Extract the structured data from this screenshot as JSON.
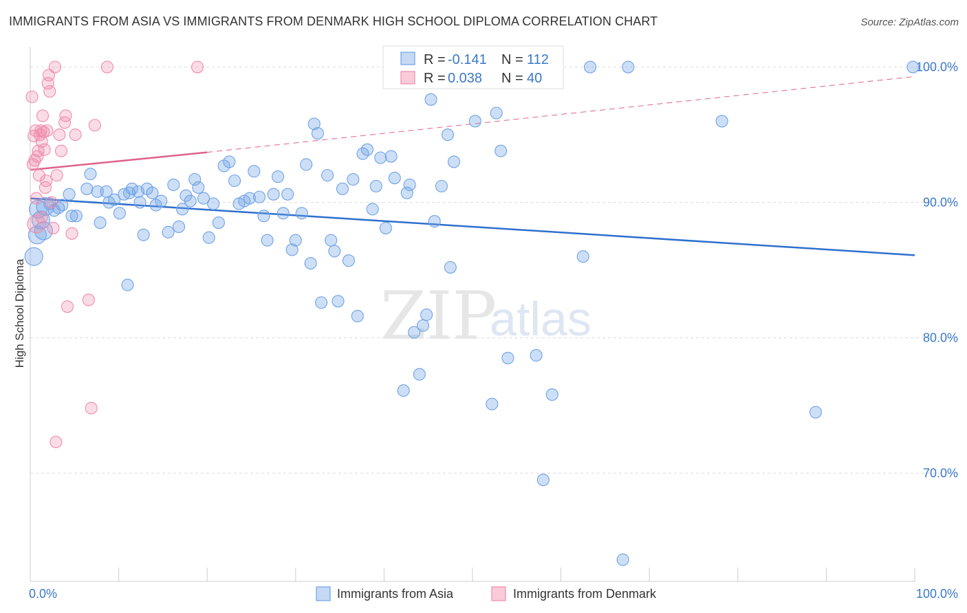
{
  "title": "IMMIGRANTS FROM ASIA VS IMMIGRANTS FROM DENMARK HIGH SCHOOL DIPLOMA CORRELATION CHART",
  "source": "Source: ZipAtlas.com",
  "watermark": {
    "zip": "ZIP",
    "atlas": "atlas"
  },
  "colors": {
    "asia": "#6fa2e6",
    "asia_line": "#2e6fce",
    "denmark": "#f08bac",
    "denmark_line": "#e0608a",
    "axis_text": "#3a78c9",
    "grid": "#dddddd"
  },
  "legend": {
    "asia": {
      "r_label": "R =",
      "r_value": "-0.141",
      "n_label": "N =",
      "n_value": "112"
    },
    "denmark": {
      "r_label": "R =",
      "r_value": "0.038",
      "n_label": "N =",
      "n_value": "40"
    }
  },
  "chart_data": {
    "type": "scatter",
    "title": "IMMIGRANTS FROM ASIA VS IMMIGRANTS FROM DENMARK HIGH SCHOOL DIPLOMA CORRELATION CHART",
    "xlabel": "",
    "ylabel": "High School Diploma",
    "xlim": [
      0,
      100
    ],
    "ylim": [
      62,
      101.5
    ],
    "x_tick_labels": [
      "0.0%",
      "100.0%"
    ],
    "y_ticks": [
      70,
      80,
      90,
      100
    ],
    "y_tick_labels": [
      "70.0%",
      "80.0%",
      "90.0%",
      "100.0%"
    ],
    "grid": true,
    "legend_position": "top-center",
    "series": [
      {
        "name": "Immigrants from Asia",
        "color": "#6fa2e6",
        "trend": {
          "x": [
            0,
            100
          ],
          "y": [
            90.3,
            86.1
          ],
          "style": "solid"
        },
        "points": [
          [
            0.4,
            86.0,
            1
          ],
          [
            0.8,
            87.6,
            1
          ],
          [
            1.2,
            88.7,
            1
          ],
          [
            1.7,
            89.7,
            1
          ],
          [
            2.2,
            89.9,
            0
          ],
          [
            2.7,
            89.4,
            0
          ],
          [
            3.2,
            89.6,
            0
          ],
          [
            3.6,
            89.8,
            0
          ],
          [
            4.4,
            90.6,
            0
          ],
          [
            4.7,
            89.0,
            0
          ],
          [
            5.2,
            89.0,
            0
          ],
          [
            6.4,
            91.0,
            0
          ],
          [
            6.8,
            92.1,
            0
          ],
          [
            7.6,
            90.8,
            0
          ],
          [
            7.9,
            88.5,
            0
          ],
          [
            8.6,
            90.8,
            0
          ],
          [
            8.9,
            90.0,
            0
          ],
          [
            9.5,
            90.2,
            0
          ],
          [
            10.1,
            89.2,
            0
          ],
          [
            10.6,
            90.6,
            0
          ],
          [
            11.2,
            90.7,
            0
          ],
          [
            11.0,
            83.9,
            0
          ],
          [
            11.5,
            91.0,
            0
          ],
          [
            12.2,
            90.8,
            0
          ],
          [
            12.4,
            90.0,
            0
          ],
          [
            12.8,
            87.6,
            0
          ],
          [
            13.2,
            91.0,
            0
          ],
          [
            13.8,
            90.7,
            0
          ],
          [
            14.2,
            89.8,
            0
          ],
          [
            14.8,
            90.1,
            0
          ],
          [
            15.6,
            87.8,
            0
          ],
          [
            16.2,
            91.3,
            0
          ],
          [
            16.8,
            88.2,
            0
          ],
          [
            17.2,
            89.5,
            0
          ],
          [
            17.6,
            90.5,
            0
          ],
          [
            18.1,
            90.1,
            0
          ],
          [
            18.6,
            91.7,
            0
          ],
          [
            19.0,
            91.1,
            0
          ],
          [
            19.6,
            90.3,
            0
          ],
          [
            20.2,
            87.4,
            0
          ],
          [
            20.7,
            89.9,
            0
          ],
          [
            21.3,
            88.5,
            0
          ],
          [
            21.9,
            92.7,
            0
          ],
          [
            22.5,
            93.0,
            0
          ],
          [
            23.1,
            91.6,
            0
          ],
          [
            23.6,
            89.9,
            0
          ],
          [
            24.2,
            90.1,
            0
          ],
          [
            24.8,
            90.3,
            0
          ],
          [
            25.3,
            92.3,
            0
          ],
          [
            25.9,
            90.4,
            0
          ],
          [
            26.4,
            89.0,
            0
          ],
          [
            26.8,
            87.2,
            0
          ],
          [
            27.5,
            90.6,
            0
          ],
          [
            28.0,
            91.9,
            0
          ],
          [
            28.6,
            89.2,
            0
          ],
          [
            29.1,
            90.6,
            0
          ],
          [
            29.6,
            86.5,
            0
          ],
          [
            30.0,
            87.2,
            0
          ],
          [
            30.7,
            89.2,
            0
          ],
          [
            31.2,
            92.8,
            0
          ],
          [
            31.7,
            85.5,
            0
          ],
          [
            32.1,
            95.8,
            0
          ],
          [
            32.5,
            95.1,
            0
          ],
          [
            32.9,
            82.6,
            0
          ],
          [
            33.6,
            92.0,
            0
          ],
          [
            34.0,
            87.2,
            0
          ],
          [
            34.4,
            86.4,
            0
          ],
          [
            34.8,
            82.7,
            0
          ],
          [
            35.3,
            91.0,
            0
          ],
          [
            36.0,
            85.7,
            0
          ],
          [
            36.5,
            91.7,
            0
          ],
          [
            37.0,
            81.6,
            0
          ],
          [
            37.6,
            93.6,
            0
          ],
          [
            38.1,
            93.9,
            0
          ],
          [
            38.7,
            89.5,
            0
          ],
          [
            39.1,
            91.2,
            0
          ],
          [
            39.6,
            93.3,
            0
          ],
          [
            40.2,
            88.1,
            0
          ],
          [
            40.8,
            93.4,
            0
          ],
          [
            41.2,
            91.8,
            0
          ],
          [
            42.2,
            76.1,
            0
          ],
          [
            42.6,
            90.7,
            0
          ],
          [
            42.9,
            91.3,
            0
          ],
          [
            43.4,
            80.4,
            0
          ],
          [
            44.0,
            77.3,
            0
          ],
          [
            44.4,
            80.9,
            0
          ],
          [
            44.8,
            81.7,
            0
          ],
          [
            45.3,
            97.6,
            0
          ],
          [
            45.7,
            88.6,
            0
          ],
          [
            46.5,
            91.2,
            0
          ],
          [
            47.2,
            95.0,
            0
          ],
          [
            47.5,
            85.2,
            0
          ],
          [
            47.9,
            93.0,
            0
          ],
          [
            49.3,
            99.4,
            0
          ],
          [
            50.3,
            96.0,
            0
          ],
          [
            52.2,
            75.1,
            0
          ],
          [
            52.7,
            96.6,
            0
          ],
          [
            53.2,
            93.8,
            0
          ],
          [
            54.0,
            78.5,
            0
          ],
          [
            55.6,
            99.4,
            0
          ],
          [
            57.2,
            78.7,
            0
          ],
          [
            58.0,
            69.5,
            0
          ],
          [
            59.0,
            75.8,
            0
          ],
          [
            62.5,
            86.0,
            0
          ],
          [
            63.3,
            100.0,
            0
          ],
          [
            67.0,
            63.6,
            0
          ],
          [
            67.6,
            100.0,
            0
          ],
          [
            78.2,
            96.0,
            0
          ],
          [
            88.8,
            74.5,
            0
          ],
          [
            99.8,
            100.0,
            0
          ],
          [
            0.9,
            89.5,
            1
          ],
          [
            1.5,
            87.9,
            1
          ]
        ]
      },
      {
        "name": "Immigrants from Denmark",
        "color": "#f08bac",
        "trend": {
          "x": [
            0,
            20
          ],
          "y": [
            92.4,
            93.7
          ],
          "x_dashed": [
            20,
            100
          ],
          "y_dashed": [
            93.7,
            99.3
          ]
        },
        "points": [
          [
            0.3,
            92.8,
            0
          ],
          [
            0.4,
            94.9,
            0
          ],
          [
            0.5,
            93.1,
            0
          ],
          [
            0.6,
            95.3,
            0
          ],
          [
            0.7,
            90.3,
            0
          ],
          [
            0.7,
            88.4,
            1
          ],
          [
            0.8,
            93.4,
            0
          ],
          [
            0.9,
            93.8,
            0
          ],
          [
            1.0,
            92.0,
            0
          ],
          [
            1.1,
            95.0,
            0
          ],
          [
            1.2,
            95.3,
            0
          ],
          [
            1.3,
            94.5,
            0
          ],
          [
            1.4,
            96.4,
            0
          ],
          [
            1.5,
            95.2,
            0
          ],
          [
            1.6,
            93.9,
            0
          ],
          [
            1.7,
            91.1,
            0
          ],
          [
            1.8,
            91.6,
            0
          ],
          [
            1.9,
            95.3,
            0
          ],
          [
            2.0,
            98.8,
            0
          ],
          [
            2.1,
            99.4,
            0
          ],
          [
            2.2,
            98.2,
            0
          ],
          [
            2.4,
            90.0,
            0
          ],
          [
            2.6,
            88.1,
            0
          ],
          [
            2.8,
            100.0,
            0
          ],
          [
            2.9,
            72.3,
            0
          ],
          [
            3.0,
            92.0,
            0
          ],
          [
            3.3,
            95.0,
            0
          ],
          [
            3.5,
            93.8,
            0
          ],
          [
            3.9,
            95.9,
            0
          ],
          [
            4.0,
            96.4,
            0
          ],
          [
            4.2,
            82.3,
            0
          ],
          [
            4.7,
            87.7,
            0
          ],
          [
            5.1,
            95.0,
            0
          ],
          [
            6.6,
            82.8,
            0
          ],
          [
            6.9,
            74.8,
            0
          ],
          [
            7.3,
            95.7,
            0
          ],
          [
            8.7,
            100.0,
            0
          ],
          [
            18.9,
            100.0,
            0
          ],
          [
            0.2,
            97.8,
            0
          ],
          [
            1.3,
            88.9,
            0
          ]
        ]
      }
    ]
  },
  "bottom_legend": {
    "asia": "Immigrants from Asia",
    "denmark": "Immigrants from Denmark"
  }
}
